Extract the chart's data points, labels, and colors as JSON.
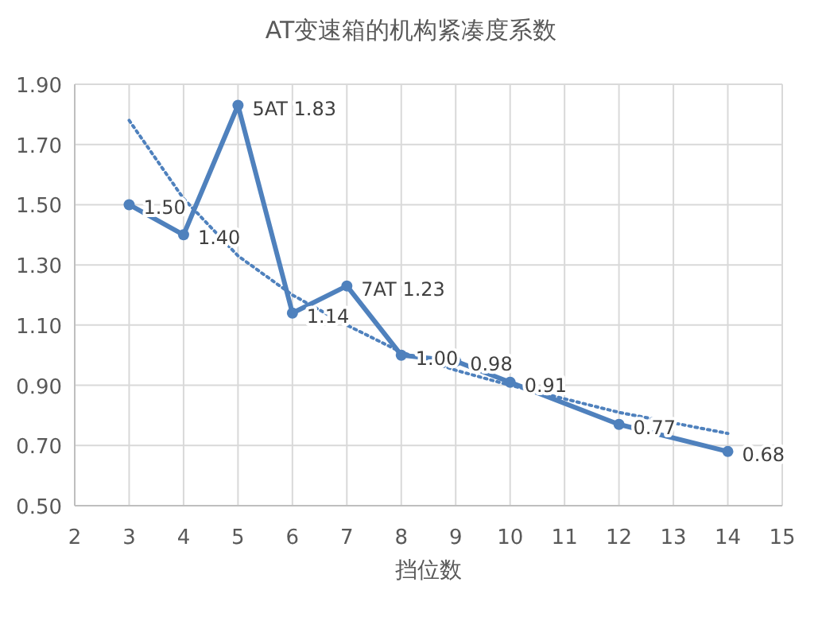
{
  "chart_data": {
    "type": "line",
    "title": "AT变速箱的机构紧凑度系数",
    "xlabel": "挡位数",
    "xlim": [
      2,
      15
    ],
    "xticks": [
      2,
      3,
      4,
      5,
      6,
      7,
      8,
      9,
      10,
      11,
      12,
      13,
      14,
      15
    ],
    "ylim": [
      0.5,
      1.9
    ],
    "yticks": [
      {
        "value": 0.5,
        "label": "0.50"
      },
      {
        "value": 0.7,
        "label": "0.70"
      },
      {
        "value": 0.9,
        "label": "0.90"
      },
      {
        "value": 1.1,
        "label": "1.10"
      },
      {
        "value": 1.3,
        "label": "1.30"
      },
      {
        "value": 1.5,
        "label": "1.50"
      },
      {
        "value": 1.7,
        "label": "1.70"
      },
      {
        "value": 1.9,
        "label": "1.90"
      }
    ],
    "grid": true,
    "series": [
      {
        "color": "#4f81bd",
        "marker": "circle",
        "line_style": "solid",
        "x": [
          3,
          4,
          5,
          6,
          7,
          8,
          9,
          10,
          12,
          14
        ],
        "values": [
          1.5,
          1.4,
          1.83,
          1.14,
          1.23,
          1.0,
          0.98,
          0.91,
          0.77,
          0.68
        ],
        "value_labels": [
          "1.50",
          "1.40",
          "5AT 1.83",
          "1.14",
          "7AT 1.23",
          "1.00",
          "0.98",
          "0.91",
          "0.77",
          "0.68"
        ]
      },
      {
        "color": "#4f81bd",
        "marker": "none",
        "line_style": "dotted",
        "x": [
          3,
          4,
          5,
          6,
          7,
          8,
          9,
          10,
          12,
          14
        ],
        "values": [
          1.78,
          1.52,
          1.33,
          1.2,
          1.1,
          1.01,
          0.95,
          0.9,
          0.81,
          0.74
        ]
      }
    ]
  }
}
